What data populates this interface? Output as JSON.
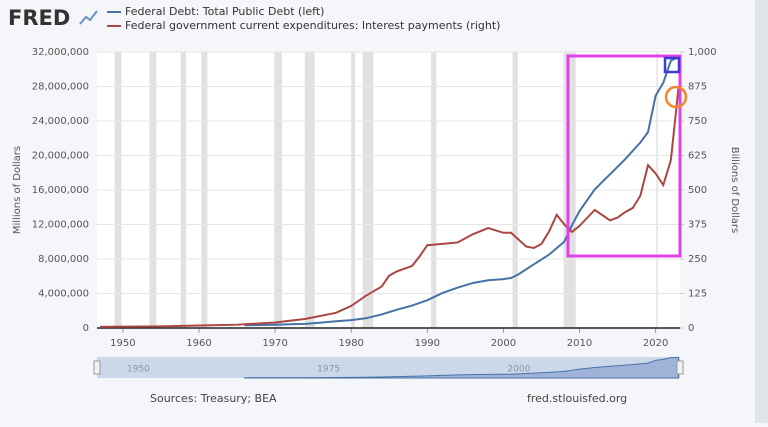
{
  "logo": "FRED",
  "chart_data": {
    "type": "line",
    "x_series_note_free": null,
    "xlim": [
      1946.6,
      2023.2
    ],
    "xticks": [
      1950,
      1960,
      1970,
      1980,
      1990,
      2000,
      2010,
      2020
    ],
    "ylim": [
      0,
      32000000
    ],
    "yticks": [
      0,
      {
        "value": 4000000,
        "label": "4,000,000"
      },
      {
        "value": 8000000,
        "label": "8,000,000"
      },
      {
        "value": 12000000,
        "label": "12,000,000"
      },
      {
        "value": 16000000,
        "label": "16,000,000"
      },
      {
        "value": 20000000,
        "label": "20,000,000"
      },
      {
        "value": 24000000,
        "label": "24,000,000"
      },
      {
        "value": 28000000,
        "label": "28,000,000"
      },
      {
        "value": 32000000,
        "label": "32,000,000"
      }
    ],
    "y2lim": [
      0,
      1000
    ],
    "y2ticks": [
      0,
      125,
      250,
      375,
      500,
      625,
      750,
      875,
      {
        "value": 1000,
        "label": "1,000"
      }
    ],
    "ylabel": "Millions of Dollars",
    "y2label": "Billions of Dollars",
    "grid": true,
    "recessions": [
      [
        1948.9,
        1949.8
      ],
      [
        1953.5,
        1954.4
      ],
      [
        1957.6,
        1958.3
      ],
      [
        1960.3,
        1961.1
      ],
      [
        1969.9,
        1970.9
      ],
      [
        1973.9,
        1975.2
      ],
      [
        1980.0,
        1980.5
      ],
      [
        1981.5,
        1982.9
      ],
      [
        1990.5,
        1991.2
      ],
      [
        2001.2,
        2001.9
      ],
      [
        2007.9,
        2009.5
      ],
      [
        2020.1,
        2020.3
      ]
    ],
    "series": [
      {
        "name": "Federal Debt: Total Public Debt (left)",
        "color": "#4572a7",
        "x": [
          1966,
          1968,
          1970,
          1972,
          1974,
          1976,
          1978,
          1980,
          1982,
          1984,
          1986,
          1988,
          1990,
          1992,
          1994,
          1996,
          1998,
          2000,
          2001,
          2002,
          2004,
          2006,
          2008,
          2009,
          2010,
          2012,
          2014,
          2016,
          2018,
          2019,
          2020,
          2021,
          2022,
          2023
        ],
        "values": [
          320000,
          348000,
          380000,
          435000,
          480000,
          620000,
          780000,
          910000,
          1140000,
          1570000,
          2120000,
          2600000,
          3230000,
          4060000,
          4690000,
          5220000,
          5530000,
          5670000,
          5800000,
          6230000,
          7380000,
          8510000,
          10020000,
          11910000,
          13560000,
          16070000,
          17820000,
          19570000,
          21520000,
          22720000,
          26950000,
          28430000,
          31000000,
          31400000
        ]
      },
      {
        "name": "Federal government current expenditures: Interest payments (right)",
        "color": "#aa4643",
        "axis": "y2",
        "x": [
          1947,
          1950,
          1955,
          1960,
          1965,
          1970,
          1974,
          1978,
          1980,
          1982,
          1984,
          1985,
          1986,
          1988,
          1989,
          1990,
          1992,
          1994,
          1996,
          1998,
          2000,
          2001,
          2003,
          2004,
          2005,
          2006,
          2007,
          2008,
          2009,
          2010,
          2012,
          2014,
          2015,
          2016,
          2017,
          2018,
          2019,
          2020,
          2021,
          2022,
          2023
        ],
        "values": [
          4,
          5,
          6,
          9,
          12,
          20,
          33,
          55,
          80,
          118,
          150,
          190,
          205,
          225,
          260,
          300,
          305,
          310,
          340,
          362,
          345,
          345,
          295,
          290,
          305,
          350,
          410,
          375,
          348,
          370,
          428,
          390,
          400,
          420,
          435,
          480,
          590,
          560,
          518,
          608,
          870
        ]
      }
    ]
  },
  "navigator": {
    "ticks": [
      1950,
      1975,
      2000
    ]
  },
  "footer": {
    "source": "Sources: Treasury; BEA",
    "site": "fred.stlouisfed.org"
  }
}
